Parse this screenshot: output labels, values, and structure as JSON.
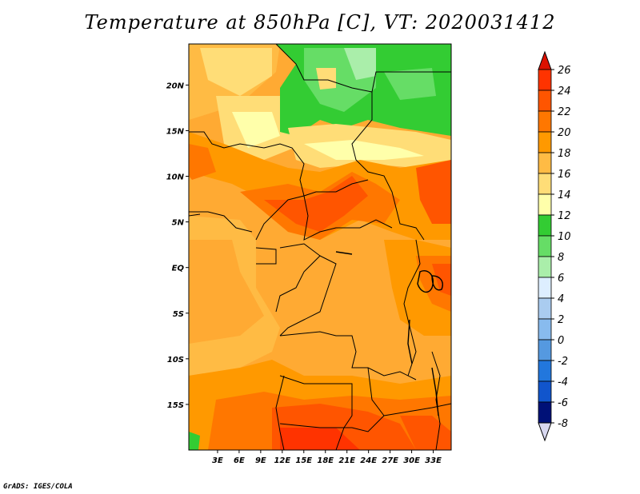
{
  "title": "Temperature at 850hPa [C], VT: 2020031412",
  "credit": "GrADS: IGES/COLA",
  "map": {
    "lon_range": [
      -1,
      35.5
    ],
    "lat_range": [
      -20,
      24.5
    ],
    "lat_ticks": [
      {
        "value": 20,
        "label": "20N"
      },
      {
        "value": 15,
        "label": "15N"
      },
      {
        "value": 10,
        "label": "10N"
      },
      {
        "value": 5,
        "label": "5N"
      },
      {
        "value": 0,
        "label": "EQ"
      },
      {
        "value": -5,
        "label": "5S"
      },
      {
        "value": -10,
        "label": "10S"
      },
      {
        "value": -15,
        "label": "15S"
      }
    ],
    "lon_ticks": [
      {
        "value": 3,
        "label": "3E"
      },
      {
        "value": 6,
        "label": "6E"
      },
      {
        "value": 9,
        "label": "9E"
      },
      {
        "value": 12,
        "label": "12E"
      },
      {
        "value": 15,
        "label": "15E"
      },
      {
        "value": 18,
        "label": "18E"
      },
      {
        "value": 21,
        "label": "21E"
      },
      {
        "value": 24,
        "label": "24E"
      },
      {
        "value": 27,
        "label": "27E"
      },
      {
        "value": 30,
        "label": "30E"
      },
      {
        "value": 33,
        "label": "33E"
      }
    ]
  },
  "colorbar": {
    "labels": [
      "26",
      "24",
      "22",
      "20",
      "18",
      "16",
      "14",
      "12",
      "10",
      "8",
      "6",
      "4",
      "2",
      "0",
      "-2",
      "-4",
      "-6",
      "-8"
    ],
    "colors": [
      "#ff3300",
      "#ff5500",
      "#ff7700",
      "#ff9900",
      "#ffbb44",
      "#ffdd77",
      "#ffffaa",
      "#33cc33",
      "#66dd66",
      "#aaeeaa",
      "#ddeeff",
      "#aaccf0",
      "#88bbee",
      "#5599e0",
      "#2277dd",
      "#1155cc",
      "#0033aa",
      "#001177"
    ],
    "top_arrow_color": "#dd1100",
    "bottom_arrow_color": "#d8d8f0"
  },
  "chart_data": {
    "type": "heatmap",
    "title": "Temperature at 850hPa [C], VT: 2020031412",
    "variable_unit": "C",
    "valid_time": "2020031412",
    "x_ticks": [
      "3E",
      "6E",
      "9E",
      "12E",
      "15E",
      "18E",
      "21E",
      "24E",
      "27E",
      "30E",
      "33E"
    ],
    "y_ticks": [
      "20N",
      "15N",
      "10N",
      "5N",
      "EQ",
      "5S",
      "10S",
      "15S"
    ],
    "colorbar_levels": [
      26,
      24,
      22,
      20,
      18,
      16,
      14,
      12,
      10,
      8,
      6,
      4,
      2,
      0,
      -2,
      -4,
      -6,
      -8
    ]
  }
}
